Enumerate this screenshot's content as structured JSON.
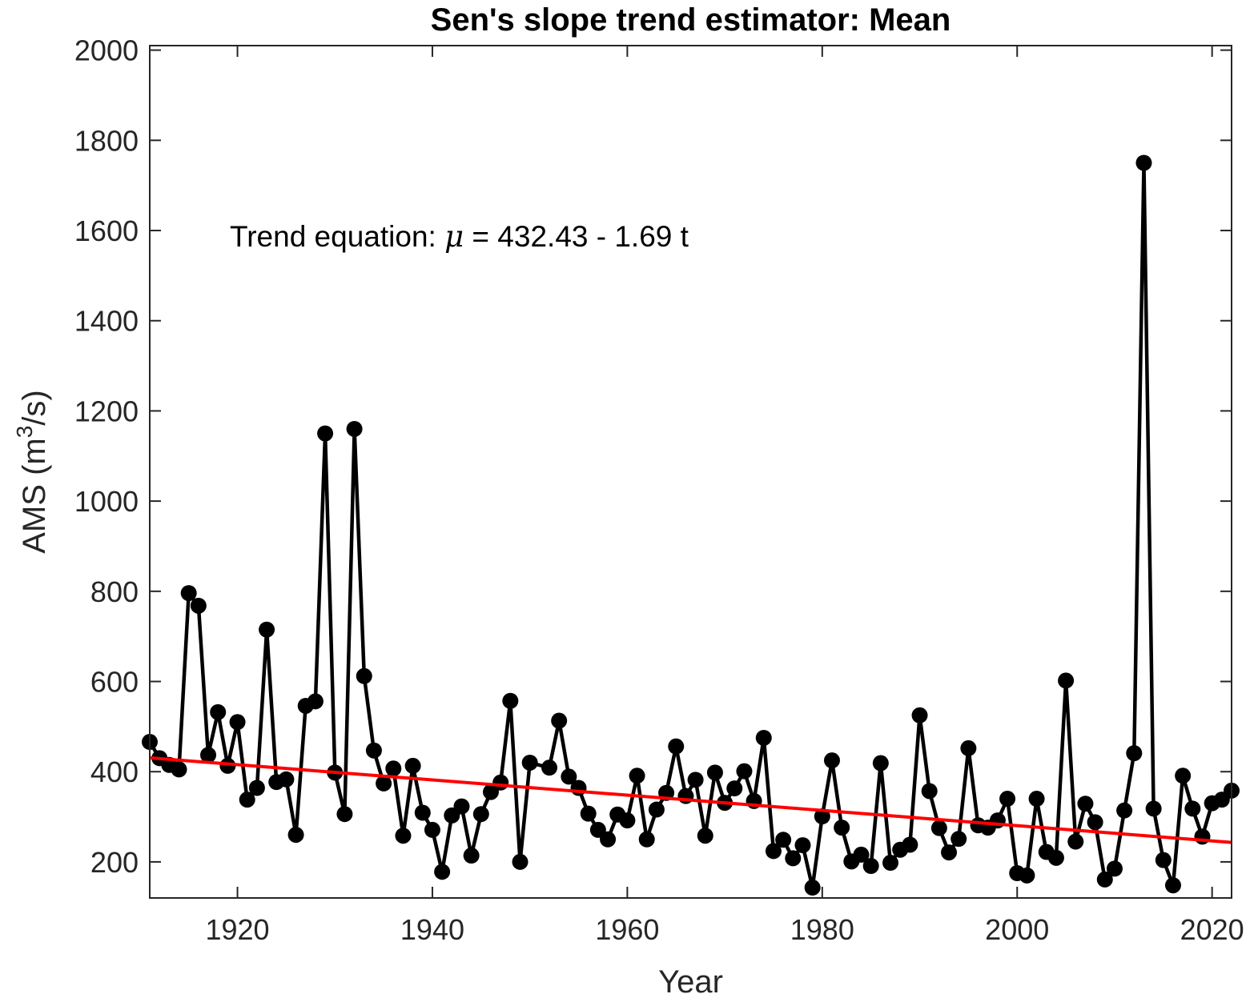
{
  "chart_data": {
    "type": "line",
    "title": "Sen's slope trend estimator: Mean",
    "xlabel": "Year",
    "ylabel": "AMS (m",
    "ylabel_sup": "3",
    "ylabel_end": "/s)",
    "xlim": [
      1911,
      2022
    ],
    "ylim": [
      120,
      2010
    ],
    "xticks": [
      1920,
      1940,
      1960,
      1980,
      2000,
      2020
    ],
    "yticks": [
      200,
      400,
      600,
      800,
      1000,
      1200,
      1400,
      1600,
      1800,
      2000
    ],
    "grid": false,
    "annotation": {
      "prefix": "Trend equation: ",
      "symbol": "μ",
      "suffix": " = 432.43 - 1.69 t"
    },
    "series": [
      {
        "color": "#000000",
        "marker": "circle",
        "x": [
          1911,
          1912,
          1913,
          1914,
          1915,
          1916,
          1917,
          1918,
          1919,
          1920,
          1921,
          1922,
          1923,
          1924,
          1925,
          1926,
          1927,
          1928,
          1929,
          1930,
          1931,
          1932,
          1933,
          1934,
          1935,
          1936,
          1937,
          1938,
          1939,
          1940,
          1941,
          1942,
          1943,
          1944,
          1945,
          1946,
          1947,
          1948,
          1949,
          1950,
          1952,
          1953,
          1954,
          1955,
          1956,
          1957,
          1958,
          1959,
          1960,
          1961,
          1962,
          1963,
          1964,
          1965,
          1966,
          1967,
          1968,
          1969,
          1970,
          1971,
          1972,
          1973,
          1974,
          1975,
          1976,
          1977,
          1978,
          1979,
          1980,
          1981,
          1982,
          1983,
          1984,
          1985,
          1986,
          1987,
          1988,
          1989,
          1990,
          1991,
          1992,
          1993,
          1994,
          1995,
          1996,
          1997,
          1998,
          1999,
          2000,
          2001,
          2002,
          2003,
          2004,
          2005,
          2006,
          2007,
          2008,
          2009,
          2010,
          2011,
          2012,
          2013,
          2014,
          2015,
          2016,
          2017,
          2018,
          2019,
          2020,
          2021,
          2022
        ],
        "values": [
          466,
          430,
          415,
          405,
          796,
          768,
          437,
          532,
          413,
          510,
          338,
          364,
          715,
          377,
          383,
          260,
          546,
          556,
          1150,
          398,
          306,
          1160,
          612,
          447,
          374,
          407,
          258,
          413,
          309,
          271,
          178,
          303,
          323,
          214,
          306,
          355,
          376,
          557,
          200,
          420,
          409,
          513,
          389,
          364,
          307,
          271,
          250,
          305,
          292,
          391,
          250,
          316,
          353,
          456,
          346,
          382,
          258,
          398,
          331,
          363,
          401,
          335,
          475,
          224,
          249,
          208,
          237,
          143,
          301,
          425,
          276,
          201,
          216,
          191,
          419,
          198,
          227,
          238,
          525,
          357,
          275,
          221,
          251,
          452,
          281,
          276,
          292,
          340,
          175,
          170,
          340,
          222,
          209,
          602,
          245,
          329,
          288,
          161,
          185,
          314,
          441,
          1750,
          318,
          204,
          148,
          391,
          318,
          256,
          330,
          338,
          358
        ]
      },
      {
        "color": "#ff0000",
        "x": [
          1911,
          2022
        ],
        "values": [
          430.74,
          243.15
        ]
      }
    ]
  }
}
